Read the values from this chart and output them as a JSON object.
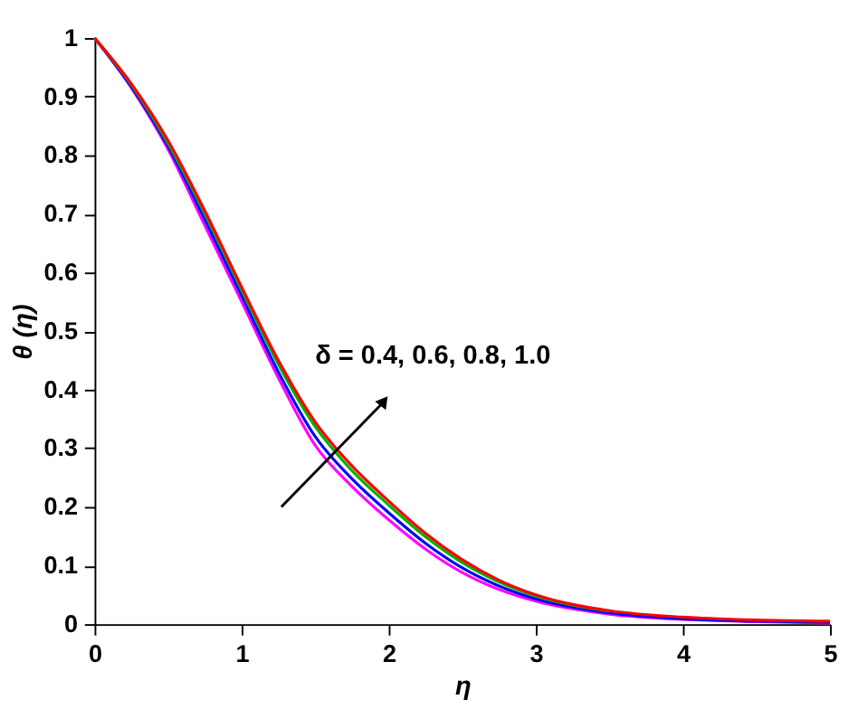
{
  "chart_data": {
    "type": "line",
    "xlabel": "η",
    "ylabel": "θ (η)",
    "x": [
      0,
      0.25,
      0.5,
      0.75,
      1,
      1.25,
      1.5,
      1.75,
      2,
      2.25,
      2.5,
      2.75,
      3,
      3.5,
      4,
      4.5,
      5
    ],
    "series": [
      {
        "color": "#ff00ff",
        "values": [
          1,
          0.915,
          0.81,
          0.68,
          0.55,
          0.42,
          0.305,
          0.235,
          0.178,
          0.128,
          0.088,
          0.059,
          0.039,
          0.017,
          0.008,
          0.004,
          0.002
        ]
      },
      {
        "color": "#0000ff",
        "values": [
          1,
          0.917,
          0.815,
          0.69,
          0.56,
          0.43,
          0.32,
          0.248,
          0.19,
          0.138,
          0.096,
          0.065,
          0.043,
          0.019,
          0.009,
          0.005,
          0.003
        ]
      },
      {
        "color": "#00b000",
        "values": [
          1,
          0.92,
          0.82,
          0.7,
          0.57,
          0.443,
          0.337,
          0.262,
          0.203,
          0.149,
          0.105,
          0.072,
          0.048,
          0.022,
          null,
          null,
          null
        ]
      },
      {
        "color": "#ff0000",
        "values": [
          1,
          0.922,
          0.825,
          0.705,
          0.575,
          0.45,
          0.345,
          0.27,
          0.21,
          0.155,
          0.11,
          0.075,
          0.05,
          0.023,
          0.012,
          0.007,
          0.005
        ]
      }
    ],
    "annotations": [
      "δ = 0.4, 0.6, 0.8, 1.0"
    ],
    "xlim": [
      0,
      5
    ],
    "ylim": [
      0,
      1
    ],
    "xticks": [
      0,
      1,
      2,
      3,
      4,
      5
    ],
    "yticks": [
      0,
      0.1,
      0.2,
      0.3,
      0.4,
      0.5,
      0.6,
      0.7,
      0.8,
      0.9,
      1
    ],
    "grid": false,
    "legend": false,
    "marker": "none",
    "line_style": "solid"
  }
}
